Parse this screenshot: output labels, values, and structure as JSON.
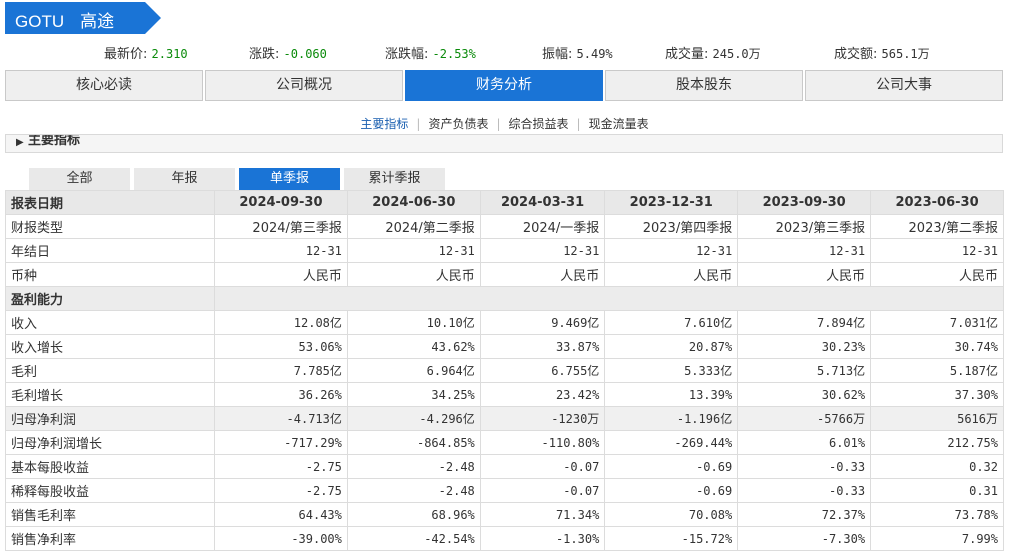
{
  "banner": {
    "code": "GOTU",
    "name": "高途",
    "color": "#1a74d6"
  },
  "quote": [
    {
      "label": "最新价:",
      "value": "2.310",
      "tone": "up"
    },
    {
      "label": "涨跌:",
      "value": "-0.060",
      "tone": "down"
    },
    {
      "label": "涨跌幅:",
      "value": "-2.53%",
      "tone": "down"
    },
    {
      "label": "振幅:",
      "value": "5.49%",
      "tone": "plain"
    },
    {
      "label": "成交量:",
      "value": "245.0万",
      "tone": "plain"
    },
    {
      "label": "成交额:",
      "value": "565.1万",
      "tone": "plain"
    }
  ],
  "main_tabs": [
    {
      "label": "核心必读",
      "active": false
    },
    {
      "label": "公司概况",
      "active": false
    },
    {
      "label": "财务分析",
      "active": true
    },
    {
      "label": "股本股东",
      "active": false
    },
    {
      "label": "公司大事",
      "active": false
    }
  ],
  "sub_tabs": [
    {
      "label": "主要指标",
      "active": true
    },
    {
      "label": "资产负债表",
      "active": false
    },
    {
      "label": "综合损益表",
      "active": false
    },
    {
      "label": "现金流量表",
      "active": false
    }
  ],
  "section_title": "主要指标",
  "period_tabs": [
    {
      "label": "全部",
      "active": false
    },
    {
      "label": "年报",
      "active": false
    },
    {
      "label": "单季报",
      "active": true
    },
    {
      "label": "累计季报",
      "active": false
    }
  ],
  "table": {
    "header_label": "报表日期",
    "dates": [
      "2024-09-30",
      "2024-06-30",
      "2024-03-31",
      "2023-12-31",
      "2023-09-30",
      "2023-06-30"
    ],
    "rows": [
      {
        "label": "财报类型",
        "kind": "text",
        "values": [
          "2024/第三季报",
          "2024/第二季报",
          "2024/一季报",
          "2023/第四季报",
          "2023/第三季报",
          "2023/第二季报"
        ]
      },
      {
        "label": "年结日",
        "kind": "num",
        "values": [
          "12-31",
          "12-31",
          "12-31",
          "12-31",
          "12-31",
          "12-31"
        ]
      },
      {
        "label": "币种",
        "kind": "text",
        "values": [
          "人民币",
          "人民币",
          "人民币",
          "人民币",
          "人民币",
          "人民币"
        ]
      },
      {
        "label": "盈利能力",
        "kind": "group",
        "values": []
      },
      {
        "label": "收入",
        "kind": "num",
        "values": [
          "12.08亿",
          "10.10亿",
          "9.469亿",
          "7.610亿",
          "7.894亿",
          "7.031亿"
        ]
      },
      {
        "label": "收入增长",
        "kind": "num",
        "values": [
          "53.06%",
          "43.62%",
          "33.87%",
          "20.87%",
          "30.23%",
          "30.74%"
        ]
      },
      {
        "label": "毛利",
        "kind": "num",
        "values": [
          "7.785亿",
          "6.964亿",
          "6.755亿",
          "5.333亿",
          "5.713亿",
          "5.187亿"
        ]
      },
      {
        "label": "毛利增长",
        "kind": "num",
        "values": [
          "36.26%",
          "34.25%",
          "23.42%",
          "13.39%",
          "30.62%",
          "37.30%"
        ]
      },
      {
        "label": "归母净利润",
        "kind": "num",
        "shade": true,
        "values": [
          "-4.713亿",
          "-4.296亿",
          "-1230万",
          "-1.196亿",
          "-5766万",
          "5616万"
        ]
      },
      {
        "label": "归母净利润增长",
        "kind": "num",
        "values": [
          "-717.29%",
          "-864.85%",
          "-110.80%",
          "-269.44%",
          "6.01%",
          "212.75%"
        ]
      },
      {
        "label": "基本每股收益",
        "kind": "num",
        "values": [
          "-2.75",
          "-2.48",
          "-0.07",
          "-0.69",
          "-0.33",
          "0.32"
        ]
      },
      {
        "label": "稀释每股收益",
        "kind": "num",
        "values": [
          "-2.75",
          "-2.48",
          "-0.07",
          "-0.69",
          "-0.33",
          "0.31"
        ]
      },
      {
        "label": "销售毛利率",
        "kind": "num",
        "values": [
          "64.43%",
          "68.96%",
          "71.34%",
          "70.08%",
          "72.37%",
          "73.78%"
        ]
      },
      {
        "label": "销售净利率",
        "kind": "num",
        "values": [
          "-39.00%",
          "-42.54%",
          "-1.30%",
          "-15.72%",
          "-7.30%",
          "7.99%"
        ]
      }
    ]
  }
}
